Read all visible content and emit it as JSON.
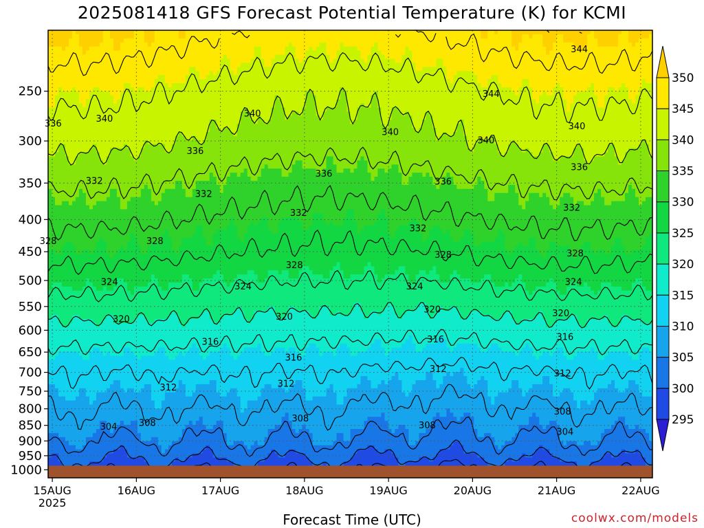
{
  "title": "2025081418 GFS Forecast Potential Temperature (K) for KCMI",
  "credit": "coolwx.com/models",
  "chart_data": {
    "type": "heatmap",
    "title": "2025081418 GFS Forecast Potential Temperature (K) for KCMI",
    "xlabel": "Forecast Time (UTC)",
    "ylabel": "",
    "x_ticks": [
      {
        "label": "15AUG",
        "sub": "2025",
        "t": 0
      },
      {
        "label": "16AUG",
        "sub": "",
        "t": 1
      },
      {
        "label": "17AUG",
        "sub": "",
        "t": 2
      },
      {
        "label": "18AUG",
        "sub": "",
        "t": 3
      },
      {
        "label": "19AUG",
        "sub": "",
        "t": 4
      },
      {
        "label": "20AUG",
        "sub": "",
        "t": 5
      },
      {
        "label": "21AUG",
        "sub": "",
        "t": 6
      },
      {
        "label": "22AUG",
        "sub": "",
        "t": 7
      }
    ],
    "x_range_days": [
      -0.05,
      7.14
    ],
    "y_ticks": [
      250,
      300,
      350,
      400,
      450,
      500,
      550,
      600,
      650,
      700,
      750,
      800,
      850,
      900,
      950,
      1000
    ],
    "y_range_hpa": [
      200,
      1030
    ],
    "y_scale": "log-pressure",
    "ground_level_hpa": 985,
    "ground_color": "#a0522d",
    "colorbar": {
      "levels": [
        295,
        300,
        305,
        310,
        315,
        320,
        325,
        330,
        335,
        340,
        345,
        350
      ],
      "colors": [
        "#2b1fd6",
        "#1f4ae6",
        "#1976e6",
        "#16a4ec",
        "#12d2f2",
        "#10ebcb",
        "#0fe87c",
        "#12d742",
        "#2ed22a",
        "#86e40a",
        "#c9f400",
        "#ffe800",
        "#ffd000"
      ]
    },
    "contour_interval": 4,
    "contour_labels": [
      {
        "text": "344",
        "t": 6.27,
        "p": 215
      },
      {
        "text": "344",
        "t": 5.22,
        "p": 253
      },
      {
        "text": "340",
        "t": 0.62,
        "p": 277
      },
      {
        "text": "340",
        "t": 2.38,
        "p": 272
      },
      {
        "text": "340",
        "t": 4.02,
        "p": 291
      },
      {
        "text": "340",
        "t": 5.16,
        "p": 300
      },
      {
        "text": "340",
        "t": 6.24,
        "p": 285
      },
      {
        "text": "336",
        "t": 0.01,
        "p": 282
      },
      {
        "text": "336",
        "t": 1.7,
        "p": 312
      },
      {
        "text": "336",
        "t": 3.23,
        "p": 339
      },
      {
        "text": "336",
        "t": 4.65,
        "p": 349
      },
      {
        "text": "336",
        "t": 6.27,
        "p": 331
      },
      {
        "text": "332",
        "t": 0.5,
        "p": 348
      },
      {
        "text": "332",
        "t": 1.8,
        "p": 365
      },
      {
        "text": "332",
        "t": 2.93,
        "p": 391
      },
      {
        "text": "332",
        "t": 4.35,
        "p": 414
      },
      {
        "text": "332",
        "t": 6.18,
        "p": 384
      },
      {
        "text": "328",
        "t": -0.05,
        "p": 434
      },
      {
        "text": "328",
        "t": 1.22,
        "p": 434
      },
      {
        "text": "328",
        "t": 2.88,
        "p": 474
      },
      {
        "text": "328",
        "t": 4.65,
        "p": 456
      },
      {
        "text": "328",
        "t": 6.22,
        "p": 454
      },
      {
        "text": "324",
        "t": 0.68,
        "p": 504
      },
      {
        "text": "324",
        "t": 2.27,
        "p": 512
      },
      {
        "text": "324",
        "t": 4.31,
        "p": 512
      },
      {
        "text": "324",
        "t": 6.2,
        "p": 504
      },
      {
        "text": "320",
        "t": 0.82,
        "p": 577
      },
      {
        "text": "320",
        "t": 2.76,
        "p": 572
      },
      {
        "text": "320",
        "t": 4.52,
        "p": 557
      },
      {
        "text": "320",
        "t": 6.05,
        "p": 565
      },
      {
        "text": "316",
        "t": 1.88,
        "p": 627
      },
      {
        "text": "316",
        "t": 2.87,
        "p": 665
      },
      {
        "text": "316",
        "t": 4.56,
        "p": 622
      },
      {
        "text": "316",
        "t": 6.1,
        "p": 616
      },
      {
        "text": "312",
        "t": 1.38,
        "p": 742
      },
      {
        "text": "312",
        "t": 2.78,
        "p": 731
      },
      {
        "text": "312",
        "t": 4.59,
        "p": 693
      },
      {
        "text": "312",
        "t": 6.07,
        "p": 704
      },
      {
        "text": "308",
        "t": 1.13,
        "p": 844
      },
      {
        "text": "308",
        "t": 2.95,
        "p": 830
      },
      {
        "text": "308",
        "t": 4.46,
        "p": 852
      },
      {
        "text": "308",
        "t": 6.07,
        "p": 810
      },
      {
        "text": "304",
        "t": 0.67,
        "p": 856
      },
      {
        "text": "304",
        "t": 6.1,
        "p": 872
      }
    ],
    "grid": "dotted",
    "legend": "colorbar-right"
  }
}
